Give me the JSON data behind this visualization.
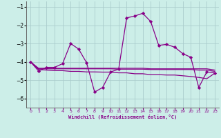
{
  "xlabel": "Windchill (Refroidissement éolien,°C)",
  "bg_color": "#cceee8",
  "line_color": "#880088",
  "grid_color": "#aacccc",
  "x_values": [
    0,
    1,
    2,
    3,
    4,
    5,
    6,
    7,
    8,
    9,
    10,
    11,
    12,
    13,
    14,
    15,
    16,
    17,
    18,
    19,
    20,
    21,
    22,
    23
  ],
  "main_y": [
    -4.0,
    -4.5,
    -4.3,
    -4.3,
    -4.1,
    -3.0,
    -3.3,
    -4.05,
    -5.65,
    -5.4,
    -4.55,
    -4.4,
    -1.6,
    -1.5,
    -1.35,
    -1.8,
    -3.1,
    -3.05,
    -3.2,
    -3.55,
    -3.75,
    -5.4,
    -4.55,
    -4.6
  ],
  "line2_y": [
    -4.0,
    -4.35,
    -4.35,
    -4.35,
    -4.35,
    -4.35,
    -4.35,
    -4.35,
    -4.35,
    -4.35,
    -4.35,
    -4.35,
    -4.35,
    -4.35,
    -4.35,
    -4.38,
    -4.38,
    -4.38,
    -4.38,
    -4.38,
    -4.38,
    -4.38,
    -4.38,
    -4.45
  ],
  "line3_y": [
    -4.0,
    -4.38,
    -4.38,
    -4.38,
    -4.38,
    -4.38,
    -4.38,
    -4.38,
    -4.38,
    -4.38,
    -4.38,
    -4.4,
    -4.4,
    -4.4,
    -4.4,
    -4.42,
    -4.42,
    -4.42,
    -4.42,
    -4.42,
    -4.42,
    -4.45,
    -4.45,
    -4.52
  ],
  "line4_y": [
    -4.0,
    -4.42,
    -4.45,
    -4.48,
    -4.48,
    -4.52,
    -4.52,
    -4.55,
    -4.55,
    -4.56,
    -4.56,
    -4.6,
    -4.6,
    -4.65,
    -4.65,
    -4.7,
    -4.7,
    -4.72,
    -4.72,
    -4.76,
    -4.8,
    -4.85,
    -4.92,
    -4.62
  ],
  "ylim": [
    -6.5,
    -0.7
  ],
  "xlim": [
    -0.5,
    23.5
  ],
  "yticks": [
    -6,
    -5,
    -4,
    -3,
    -2,
    -1
  ],
  "xticks": [
    0,
    1,
    2,
    3,
    4,
    5,
    6,
    7,
    8,
    9,
    10,
    11,
    12,
    13,
    14,
    15,
    16,
    17,
    18,
    19,
    20,
    21,
    22,
    23
  ]
}
